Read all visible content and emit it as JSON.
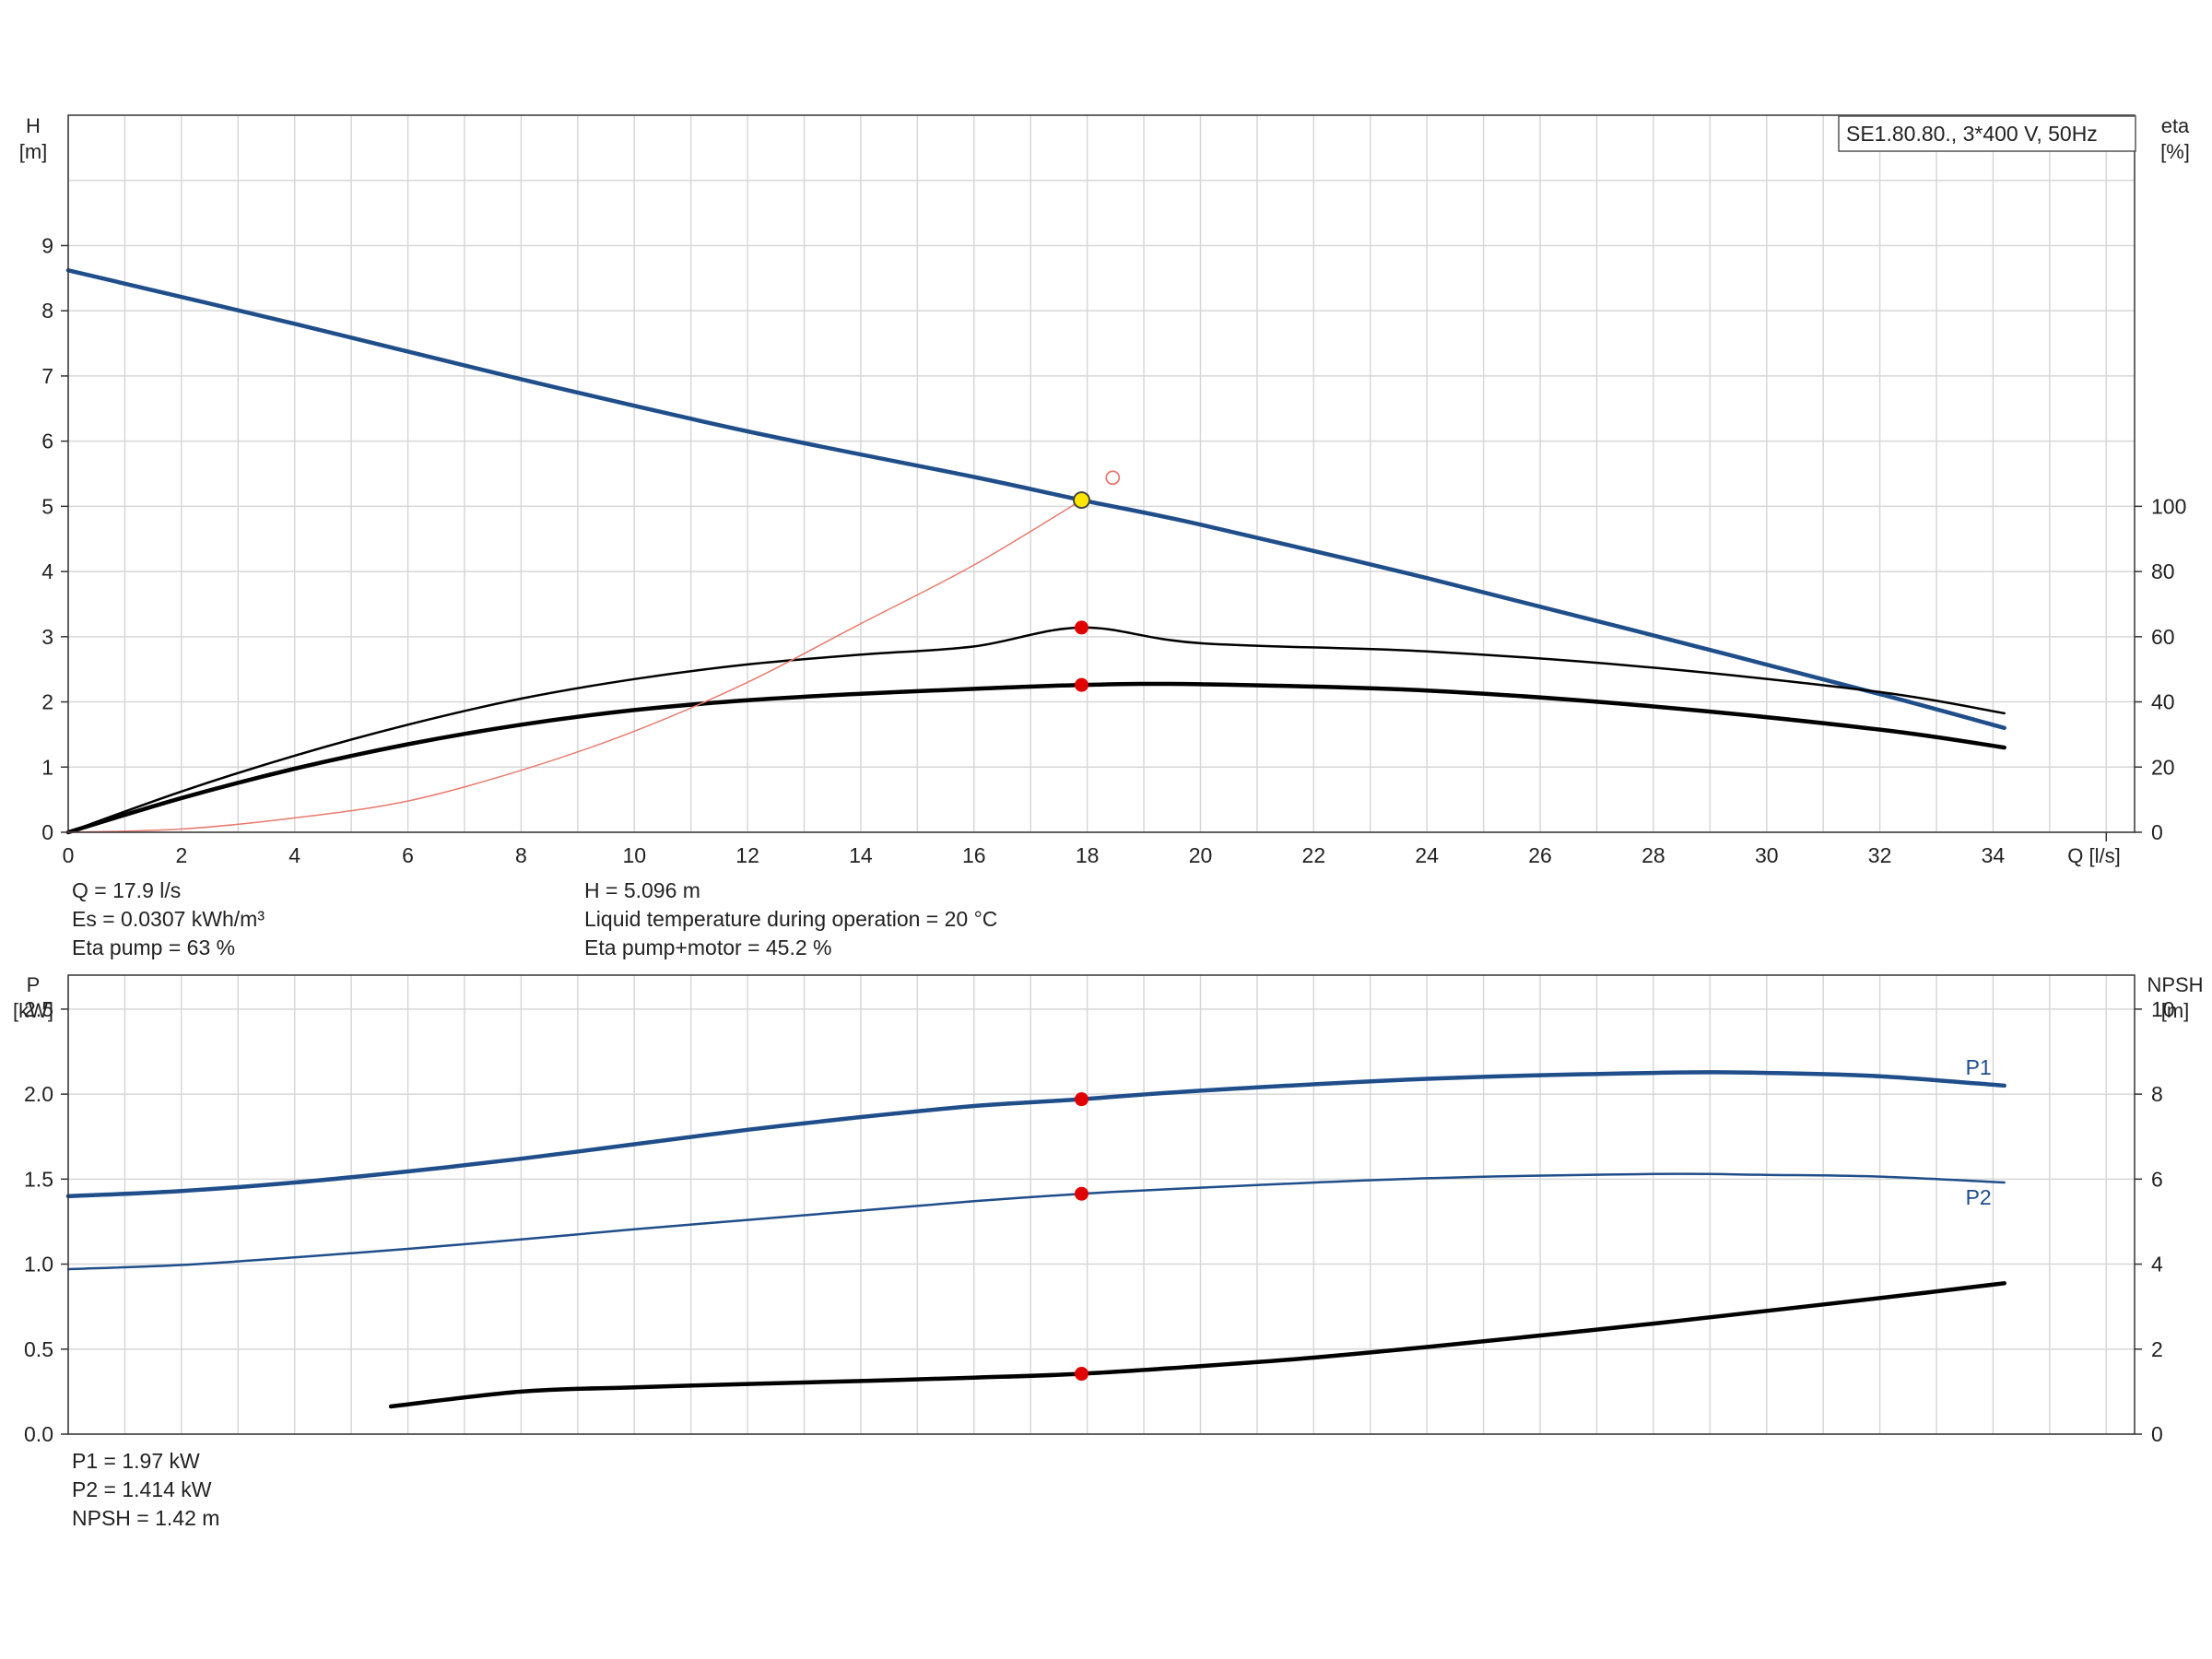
{
  "legend": "SE1.80.80., 3*400 V, 50Hz",
  "info_top": [
    [
      "Q = 17.9 l/s",
      "H = 5.096 m"
    ],
    [
      "Es = 0.0307 kWh/m³",
      "Liquid temperature during operation = 20 °C"
    ],
    [
      "Eta pump = 63 %",
      "Eta pump+motor = 45.2 %"
    ]
  ],
  "info_bottom": [
    "P1 = 1.97 kW",
    "P2 = 1.414 kW",
    "NPSH = 1.42 m"
  ],
  "colors": {
    "head": "#1f4e8a",
    "eta": "#000000",
    "system": "#e87a6e",
    "duty_point": "#e00000",
    "duty_point_highlight": "#ffe600",
    "power": "#1f4e8a",
    "npsh": "#000000"
  },
  "chart_data": [
    {
      "type": "line",
      "x_axis": {
        "label_lines": [
          "Q [l/s]"
        ],
        "range": [
          0,
          36.5
        ],
        "ticks": [
          0,
          2,
          4,
          6,
          8,
          10,
          12,
          14,
          16,
          18,
          20,
          22,
          24,
          26,
          28,
          30,
          32,
          34
        ]
      },
      "y_axis_left": {
        "label_lines": [
          "H",
          "[m]"
        ],
        "range": [
          0,
          11
        ],
        "ticks": [
          0,
          1,
          2,
          3,
          4,
          5,
          6,
          7,
          8,
          9
        ]
      },
      "y_axis_right": {
        "label_lines": [
          "eta",
          "[%]"
        ],
        "range": [
          0,
          220
        ],
        "ticks": [
          0,
          20,
          40,
          60,
          80,
          100
        ]
      },
      "grid": true,
      "legend_position": "top-right",
      "series": [
        {
          "axis": "left",
          "role": "head",
          "x": [
            0,
            4,
            8,
            12,
            16,
            17.9,
            20,
            24,
            28,
            32,
            34.2
          ],
          "y": [
            8.62,
            7.8,
            6.95,
            6.15,
            5.45,
            5.096,
            4.72,
            3.9,
            3.02,
            2.12,
            1.6
          ]
        },
        {
          "axis": "right",
          "role": "eta",
          "x": [
            0,
            2,
            4,
            6,
            8,
            10,
            12,
            14,
            16,
            17.9,
            20,
            24,
            28,
            32,
            34.2
          ],
          "y": [
            0,
            12.5,
            23.5,
            33,
            41,
            47,
            51.5,
            54.5,
            57,
            62.8,
            58,
            55.5,
            50.5,
            43,
            36.5
          ]
        },
        {
          "axis": "right",
          "role": "eta_pump_motor",
          "x": [
            0,
            2,
            4,
            6,
            8,
            10,
            12,
            14,
            16,
            17.9,
            20,
            24,
            28,
            32,
            34.2
          ],
          "y": [
            0,
            10.5,
            19.5,
            27,
            33,
            37.5,
            40.5,
            42.5,
            44,
            45.2,
            45.4,
            43.5,
            38.6,
            31.5,
            26
          ]
        },
        {
          "axis": "left",
          "role": "system",
          "x": [
            0,
            2,
            4,
            6,
            8,
            10,
            12,
            14,
            16,
            17.9
          ],
          "y": [
            0,
            0.05,
            0.22,
            0.48,
            0.95,
            1.55,
            2.3,
            3.2,
            4.1,
            5.096
          ]
        }
      ],
      "duty_points": [
        {
          "axis": "left",
          "x": 17.9,
          "y": 5.096,
          "style": "highlight"
        },
        {
          "axis": "right",
          "x": 17.9,
          "y": 62.8
        },
        {
          "axis": "right",
          "x": 17.9,
          "y": 45.2
        }
      ],
      "open_marker": {
        "axis": "left",
        "x": 18.45,
        "y": 5.44
      }
    },
    {
      "type": "line",
      "x_axis": {
        "range": [
          0,
          36.5
        ]
      },
      "y_axis_left": {
        "label_lines": [
          "P",
          "[kW]"
        ],
        "range": [
          0,
          2.7
        ],
        "ticks": [
          0.0,
          0.5,
          1.0,
          1.5,
          2.0,
          2.5
        ],
        "tick_labels": [
          "0.0",
          "0.5",
          "1.0",
          "1.5",
          "2.0",
          "2.5"
        ]
      },
      "y_axis_right": {
        "label_lines": [
          "NPSH",
          "[m]"
        ],
        "range": [
          0,
          10.8
        ],
        "ticks": [
          0,
          2,
          4,
          6,
          8,
          10
        ]
      },
      "grid": true,
      "series": [
        {
          "name": "P1",
          "axis": "left",
          "x": [
            0,
            2,
            4,
            6,
            8,
            10,
            12,
            14,
            16,
            17.9,
            20,
            24,
            28,
            30,
            32,
            34.2
          ],
          "y": [
            1.4,
            1.43,
            1.48,
            1.545,
            1.62,
            1.705,
            1.79,
            1.865,
            1.93,
            1.97,
            2.02,
            2.09,
            2.125,
            2.125,
            2.105,
            2.05
          ]
        },
        {
          "name": "P2",
          "axis": "left",
          "x": [
            0,
            2,
            4,
            6,
            8,
            10,
            12,
            14,
            16,
            17.9,
            20,
            24,
            28,
            30,
            32,
            34.2
          ],
          "y": [
            0.97,
            0.995,
            1.04,
            1.09,
            1.145,
            1.205,
            1.26,
            1.315,
            1.37,
            1.414,
            1.45,
            1.505,
            1.53,
            1.525,
            1.515,
            1.48
          ]
        },
        {
          "axis": "right",
          "role": "npsh",
          "x": [
            5.7,
            8,
            10,
            12,
            14,
            16,
            17.9,
            20,
            22,
            24,
            26,
            28,
            30,
            32,
            34.2
          ],
          "y": [
            0.65,
            1.0,
            1.1,
            1.18,
            1.25,
            1.33,
            1.42,
            1.6,
            1.8,
            2.05,
            2.32,
            2.6,
            2.9,
            3.2,
            3.55
          ]
        }
      ],
      "duty_points": [
        {
          "axis": "left",
          "x": 17.9,
          "y": 1.97
        },
        {
          "axis": "left",
          "x": 17.9,
          "y": 1.414
        },
        {
          "axis": "right",
          "x": 17.9,
          "y": 1.42
        }
      ]
    }
  ]
}
